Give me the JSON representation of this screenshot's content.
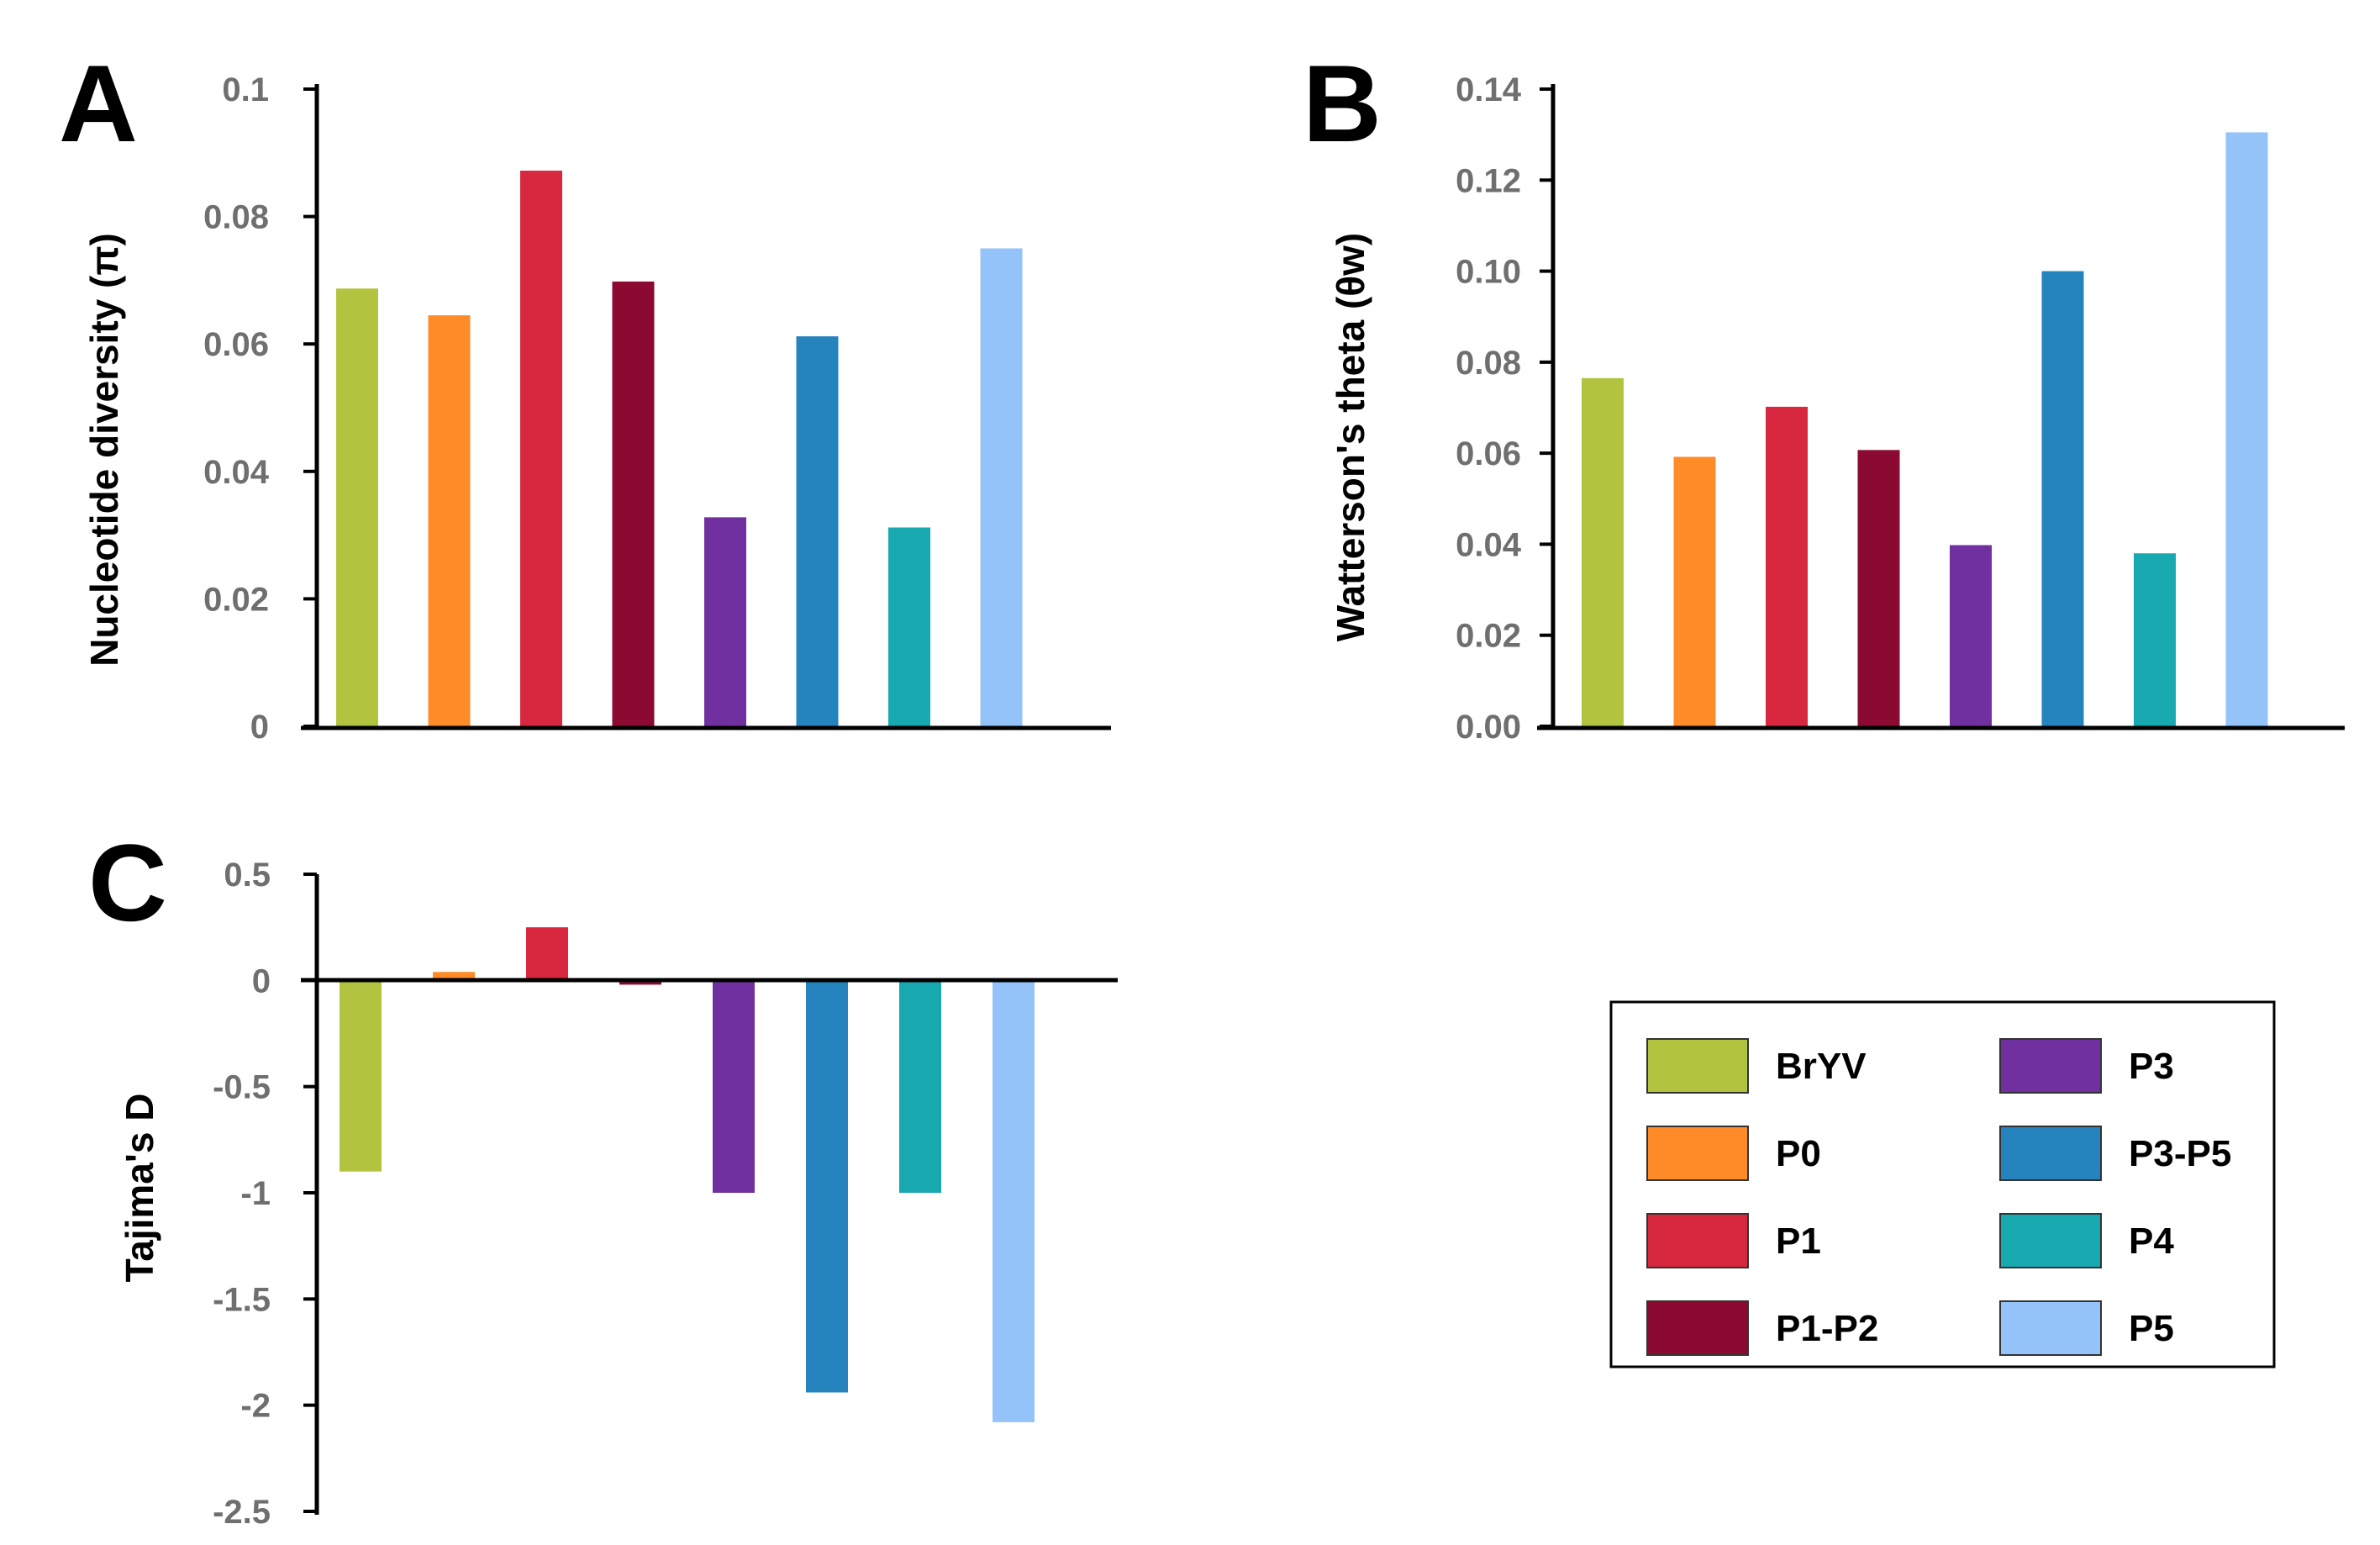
{
  "chart_data": [
    {
      "id": "A",
      "type": "bar",
      "panel_label": "A",
      "ylabel": "Nucleotide diversity (π)",
      "ylim": [
        0,
        0.1
      ],
      "yticks": [
        0,
        0.02,
        0.04,
        0.06,
        0.08,
        0.1
      ],
      "ytick_labels": [
        "0",
        "0.02",
        "0.04",
        "0.06",
        "0.08",
        "0.1"
      ],
      "categories": [
        "BrYV",
        "P0",
        "P1",
        "P1-P2",
        "P3",
        "P3-P5",
        "P4",
        "P5"
      ],
      "values": [
        0.0687,
        0.0645,
        0.0872,
        0.0698,
        0.0328,
        0.0612,
        0.0312,
        0.075
      ]
    },
    {
      "id": "B",
      "type": "bar",
      "panel_label": "B",
      "ylabel": "Watterson's theta (θw)",
      "ylim": [
        0,
        0.14
      ],
      "yticks": [
        0,
        0.02,
        0.04,
        0.06,
        0.08,
        0.1,
        0.12,
        0.14
      ],
      "ytick_labels": [
        "0.00",
        "0.02",
        "0.04",
        "0.06",
        "0.08",
        "0.10",
        "0.12",
        "0.14"
      ],
      "categories": [
        "BrYV",
        "P0",
        "P1",
        "P1-P2",
        "P3",
        "P3-P5",
        "P4",
        "P5"
      ],
      "values": [
        0.0765,
        0.0592,
        0.0702,
        0.0607,
        0.0398,
        0.1,
        0.038,
        0.1305
      ]
    },
    {
      "id": "C",
      "type": "bar",
      "panel_label": "C",
      "ylabel": "Tajima's D",
      "ylim": [
        -2.5,
        0.5
      ],
      "yticks": [
        0.5,
        0,
        -0.5,
        -1,
        -1.5,
        -2,
        -2.5
      ],
      "ytick_labels": [
        "0.5",
        "0",
        "-0.5",
        "-1",
        "-1.5",
        "-2",
        "-2.5"
      ],
      "categories": [
        "BrYV",
        "P0",
        "P1",
        "P1-P2",
        "P3",
        "P3-P5",
        "P4",
        "P5"
      ],
      "values": [
        -0.9,
        0.04,
        0.25,
        -0.02,
        -1.0,
        -1.94,
        -1.0,
        -2.08
      ]
    }
  ],
  "legend": [
    {
      "label": "BrYV",
      "color": "#b2c43f"
    },
    {
      "label": "P3",
      "color": "#7030a0"
    },
    {
      "label": "P0",
      "color": "#ff8c28"
    },
    {
      "label": "P3-P5",
      "color": "#2583bd"
    },
    {
      "label": "P1",
      "color": "#d7283f"
    },
    {
      "label": "P4",
      "color": "#18a8b0"
    },
    {
      "label": "P1-P2",
      "color": "#8a0a32"
    },
    {
      "label": "P5",
      "color": "#93c3f9"
    }
  ],
  "series_colors": [
    "#b2c43f",
    "#ff8c28",
    "#d7283f",
    "#8a0a32",
    "#7030a0",
    "#2583bd",
    "#18a8b0",
    "#93c3f9"
  ]
}
